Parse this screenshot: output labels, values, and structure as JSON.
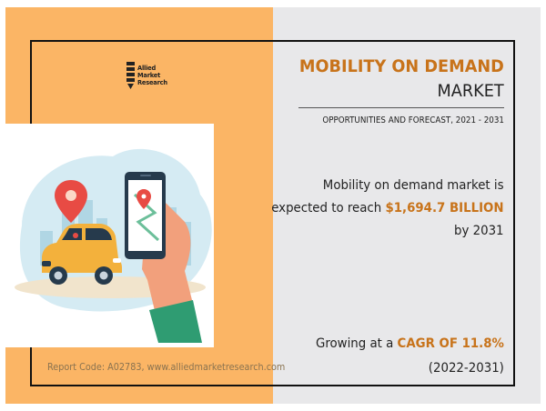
{
  "logo": {
    "line1": "Allied",
    "line2": "Market",
    "line3": "Research"
  },
  "title": {
    "main": "MOBILITY ON DEMAND",
    "sub": "MARKET"
  },
  "forecast": "OPPORTUNITIES AND FORECAST, 2021 - 2031",
  "stat1": {
    "pre": "Mobility on demand market is",
    "mid": "expected to reach ",
    "value": "$1,694.7 BILLION",
    "post": "by 2031"
  },
  "stat2": {
    "pre": "Growing at a ",
    "value": "CAGR OF 11.8%",
    "period": "(2022-2031)"
  },
  "report_code": "Report Code: A02783, www.alliedmarketresearch.com",
  "icons": [
    "logo-icon",
    "car-icon",
    "smartphone-icon",
    "location-pin-icon",
    "hand-icon"
  ],
  "colors": {
    "left_panel": "#fbb565",
    "right_panel": "#e8e8ea",
    "accent": "#c8731a",
    "frame": "#111111"
  }
}
